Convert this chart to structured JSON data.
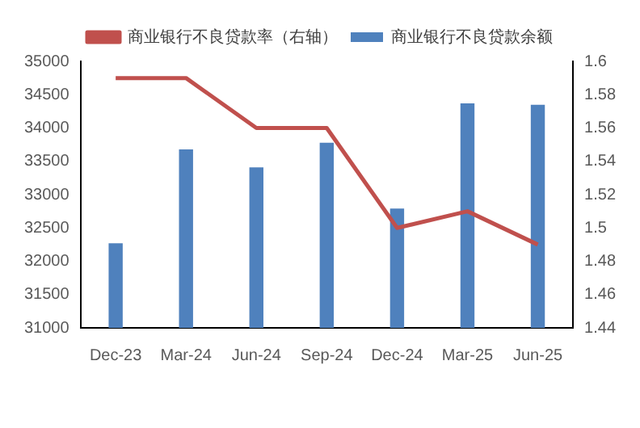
{
  "chart_data": {
    "type": "bar",
    "categories": [
      "Dec-23",
      "Mar-24",
      "Jun-24",
      "Sep-24",
      "Dec-24",
      "Mar-25",
      "Jun-25"
    ],
    "series": [
      {
        "name": "商业银行不良贷款余额",
        "color": "#4f81bd",
        "values": [
          32270,
          33680,
          33410,
          33780,
          32790,
          34370,
          34350
        ]
      },
      {
        "name": "商业银行不良贷款率（右轴）",
        "type": "line",
        "axis": "y2",
        "color": "#c0504d",
        "values": [
          1.59,
          1.59,
          1.56,
          1.56,
          1.5,
          1.51,
          1.49
        ]
      }
    ],
    "ylim": [
      31000,
      35000
    ],
    "yticks": [
      31000,
      31500,
      32000,
      32500,
      33000,
      33500,
      34000,
      34500,
      35000
    ],
    "y2lim": [
      1.44,
      1.6
    ],
    "y2ticks": [
      1.44,
      1.46,
      1.48,
      1.5,
      1.52,
      1.54,
      1.56,
      1.58,
      1.6
    ],
    "grid": false,
    "legend": "top",
    "marker": "none",
    "line_style": "solid"
  }
}
